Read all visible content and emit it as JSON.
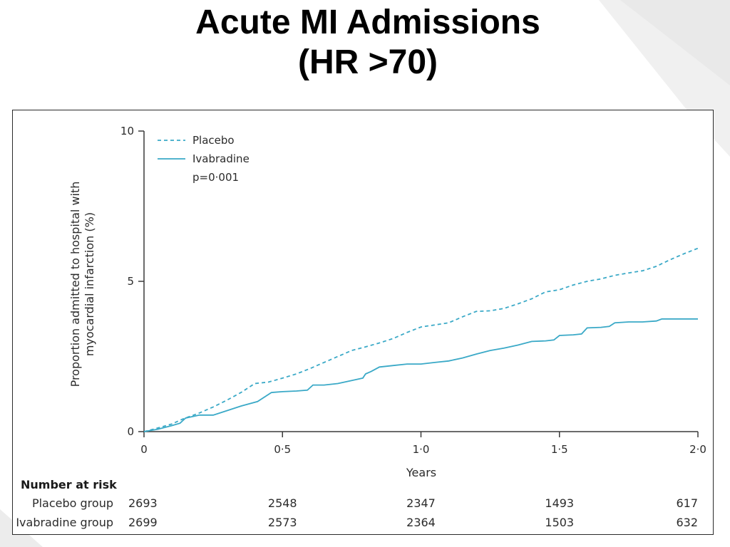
{
  "slide": {
    "title_line1": "Acute MI Admissions",
    "title_line2": "(HR >70)"
  },
  "colors": {
    "series": "#3aa9c7",
    "axis": "#3a3a3a",
    "text": "#2b2b2b"
  },
  "chart_data": {
    "type": "line",
    "title": "",
    "xlabel": "Years",
    "ylabel_line1": "Proportion admitted to hospital with",
    "ylabel_line2": "myocardial infarction (%)",
    "xlim": [
      0,
      2.0
    ],
    "ylim": [
      0,
      10
    ],
    "xticks": [
      0,
      0.5,
      1.0,
      1.5,
      2.0
    ],
    "xtick_labels": [
      "0",
      "0·5",
      "1·0",
      "1·5",
      "2·0"
    ],
    "yticks": [
      0,
      5,
      10
    ],
    "ytick_labels": [
      "0",
      "5",
      "10"
    ],
    "grid": false,
    "legend_position": "top-left",
    "annotation": "p=0·001",
    "series": [
      {
        "name": "Placebo",
        "style": "dashed",
        "x": [
          0,
          0.05,
          0.1,
          0.14,
          0.2,
          0.25,
          0.3,
          0.35,
          0.4,
          0.45,
          0.5,
          0.55,
          0.6,
          0.65,
          0.7,
          0.75,
          0.8,
          0.85,
          0.9,
          0.95,
          1.0,
          1.05,
          1.1,
          1.15,
          1.2,
          1.25,
          1.3,
          1.35,
          1.4,
          1.45,
          1.5,
          1.55,
          1.6,
          1.65,
          1.7,
          1.75,
          1.8,
          1.85,
          1.9,
          1.95,
          2.0
        ],
        "y": [
          0,
          0.12,
          0.25,
          0.42,
          0.62,
          0.82,
          1.05,
          1.3,
          1.6,
          1.65,
          1.78,
          1.92,
          2.1,
          2.3,
          2.5,
          2.7,
          2.82,
          2.95,
          3.1,
          3.3,
          3.48,
          3.55,
          3.62,
          3.82,
          4.0,
          4.02,
          4.1,
          4.25,
          4.42,
          4.65,
          4.72,
          4.88,
          5.0,
          5.08,
          5.2,
          5.28,
          5.35,
          5.5,
          5.72,
          5.92,
          6.1
        ]
      },
      {
        "name": "Ivabradine",
        "style": "solid",
        "x": [
          0,
          0.05,
          0.1,
          0.13,
          0.15,
          0.2,
          0.25,
          0.3,
          0.35,
          0.41,
          0.46,
          0.5,
          0.55,
          0.59,
          0.61,
          0.65,
          0.7,
          0.75,
          0.79,
          0.8,
          0.82,
          0.85,
          0.9,
          0.95,
          1.0,
          1.05,
          1.1,
          1.15,
          1.2,
          1.25,
          1.3,
          1.35,
          1.4,
          1.45,
          1.48,
          1.5,
          1.55,
          1.58,
          1.6,
          1.65,
          1.68,
          1.7,
          1.75,
          1.8,
          1.85,
          1.87,
          1.9,
          1.95,
          2.0
        ],
        "y": [
          0,
          0.08,
          0.2,
          0.28,
          0.45,
          0.55,
          0.55,
          0.7,
          0.85,
          1.0,
          1.3,
          1.33,
          1.35,
          1.38,
          1.55,
          1.55,
          1.6,
          1.7,
          1.78,
          1.92,
          2.0,
          2.15,
          2.2,
          2.25,
          2.25,
          2.3,
          2.35,
          2.45,
          2.58,
          2.7,
          2.78,
          2.88,
          3.0,
          3.02,
          3.05,
          3.2,
          3.22,
          3.25,
          3.45,
          3.47,
          3.5,
          3.62,
          3.65,
          3.65,
          3.68,
          3.75,
          3.75,
          3.75,
          3.75
        ]
      }
    ],
    "risk_table": {
      "heading": "Number at risk",
      "rows": [
        {
          "label": "Placebo group",
          "values": [
            "2693",
            "2548",
            "2347",
            "1493",
            "617"
          ]
        },
        {
          "label": "Ivabradine group",
          "values": [
            "2699",
            "2573",
            "2364",
            "1503",
            "632"
          ]
        }
      ]
    }
  }
}
